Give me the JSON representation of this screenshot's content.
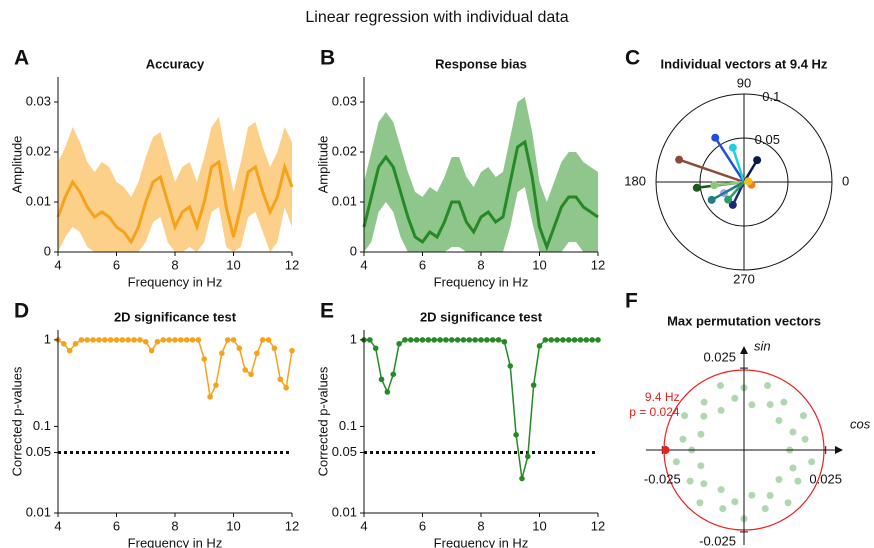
{
  "title": "Linear regression with individual data",
  "chart_data": [
    {
      "type": "line",
      "panel": "A",
      "title": "Accuracy",
      "xlabel": "Frequency in Hz",
      "ylabel": "Amplitude",
      "x": [
        4,
        4.25,
        4.5,
        4.75,
        5,
        5.25,
        5.5,
        5.75,
        6,
        6.25,
        6.5,
        6.75,
        7,
        7.25,
        7.5,
        7.75,
        8,
        8.25,
        8.5,
        8.75,
        9,
        9.25,
        9.5,
        9.75,
        10,
        10.25,
        10.5,
        10.75,
        11,
        11.25,
        11.5,
        11.75,
        12
      ],
      "values": [
        0.007,
        0.011,
        0.014,
        0.012,
        0.009,
        0.007,
        0.008,
        0.007,
        0.005,
        0.004,
        0.002,
        0.005,
        0.01,
        0.014,
        0.015,
        0.01,
        0.005,
        0.008,
        0.009,
        0.005,
        0.01,
        0.017,
        0.018,
        0.009,
        0.003,
        0.009,
        0.016,
        0.017,
        0.012,
        0.008,
        0.011,
        0.017,
        0.013
      ],
      "upper": [
        0.018,
        0.021,
        0.025,
        0.022,
        0.018,
        0.016,
        0.018,
        0.017,
        0.014,
        0.013,
        0.011,
        0.014,
        0.019,
        0.023,
        0.024,
        0.019,
        0.014,
        0.017,
        0.018,
        0.014,
        0.019,
        0.025,
        0.027,
        0.019,
        0.012,
        0.018,
        0.025,
        0.026,
        0.021,
        0.017,
        0.02,
        0.025,
        0.022
      ],
      "lower": [
        0,
        0.003,
        0.005,
        0.004,
        0.001,
        0,
        0,
        0,
        0,
        0,
        0,
        0,
        0.002,
        0.006,
        0.007,
        0.002,
        0,
        0,
        0.001,
        0,
        0.002,
        0.008,
        0.009,
        0.001,
        0,
        0.001,
        0.007,
        0.008,
        0.004,
        0,
        0.002,
        0.009,
        0.005
      ],
      "color": "#f5a31a",
      "band_color": "#fcd089",
      "xlim": [
        4,
        12
      ],
      "ylim": [
        0,
        0.035
      ],
      "xticks": [
        4,
        6,
        8,
        10,
        12
      ],
      "yticks": [
        0,
        0.01,
        0.02,
        0.03
      ],
      "log_scale": false
    },
    {
      "type": "line",
      "panel": "B",
      "title": "Response bias",
      "xlabel": "Frequency in Hz",
      "ylabel": "Amplitude",
      "x": [
        4,
        4.25,
        4.5,
        4.75,
        5,
        5.25,
        5.5,
        5.75,
        6,
        6.25,
        6.5,
        6.75,
        7,
        7.25,
        7.5,
        7.75,
        8,
        8.25,
        8.5,
        8.75,
        9,
        9.25,
        9.5,
        9.75,
        10,
        10.25,
        10.5,
        10.75,
        11,
        11.25,
        11.5,
        11.75,
        12
      ],
      "values": [
        0.005,
        0.011,
        0.017,
        0.019,
        0.017,
        0.012,
        0.007,
        0.003,
        0.002,
        0.004,
        0.003,
        0.006,
        0.01,
        0.01,
        0.006,
        0.004,
        0.007,
        0.008,
        0.006,
        0.007,
        0.014,
        0.021,
        0.022,
        0.015,
        0.005,
        0.001,
        0.005,
        0.009,
        0.011,
        0.011,
        0.009,
        0.008,
        0.007
      ],
      "upper": [
        0.014,
        0.02,
        0.026,
        0.028,
        0.026,
        0.021,
        0.016,
        0.012,
        0.011,
        0.013,
        0.012,
        0.015,
        0.019,
        0.019,
        0.015,
        0.013,
        0.016,
        0.017,
        0.015,
        0.016,
        0.023,
        0.03,
        0.031,
        0.024,
        0.014,
        0.01,
        0.014,
        0.018,
        0.02,
        0.02,
        0.018,
        0.017,
        0.016
      ],
      "lower": [
        0,
        0.002,
        0.008,
        0.01,
        0.008,
        0.003,
        0,
        0,
        0,
        0,
        0,
        0,
        0.001,
        0.001,
        0,
        0,
        0,
        0,
        0,
        0,
        0.005,
        0.012,
        0.013,
        0.006,
        0,
        0,
        0,
        0,
        0.002,
        0.002,
        0,
        0,
        0
      ],
      "color": "#258a25",
      "band_color": "#8fc68c",
      "xlim": [
        4,
        12
      ],
      "ylim": [
        0,
        0.035
      ],
      "xticks": [
        4,
        6,
        8,
        10,
        12
      ],
      "yticks": [
        0,
        0.01,
        0.02,
        0.03
      ],
      "log_scale": false
    },
    {
      "type": "polar",
      "panel": "C",
      "title": "Individual vectors at 9.4 Hz",
      "angles": [
        161,
        123,
        108,
        59,
        187,
        186,
        209,
        209,
        244,
        228,
        340,
        10
      ],
      "values": [
        0.078,
        0.06,
        0.041,
        0.029,
        0.054,
        0.034,
        0.026,
        0.042,
        0.029,
        0.027,
        0.009,
        0.005
      ],
      "colors": [
        "#8b4a3a",
        "#1f4fd8",
        "#20d0e0",
        "#0a1a4a",
        "#1a5a1a",
        "#8cc878",
        "#a0a0ff",
        "#208080",
        "#1a2a7a",
        "#2aa060",
        "#f08020",
        "#f0c020"
      ],
      "rlim": [
        0,
        0.1
      ],
      "rticks": [
        0.05,
        0.1
      ],
      "thetaticks": [
        0,
        90,
        180,
        270
      ]
    },
    {
      "type": "line",
      "panel": "D",
      "title": "2D significance test",
      "xlabel": "Frequency in Hz",
      "ylabel": "Corrected p-values",
      "x": [
        4,
        4.2,
        4.4,
        4.6,
        4.8,
        5,
        5.2,
        5.4,
        5.6,
        5.8,
        6,
        6.2,
        6.4,
        6.6,
        6.8,
        7,
        7.2,
        7.4,
        7.6,
        7.8,
        8,
        8.2,
        8.4,
        8.6,
        8.8,
        9,
        9.2,
        9.4,
        9.6,
        9.8,
        10,
        10.2,
        10.4,
        10.6,
        10.8,
        11,
        11.2,
        11.4,
        11.6,
        11.8,
        12
      ],
      "values": [
        1,
        0.9,
        0.75,
        0.9,
        1,
        1,
        1,
        1,
        1,
        1,
        1,
        1,
        1,
        1,
        1,
        0.95,
        0.75,
        0.95,
        1,
        1,
        1,
        1,
        1,
        1,
        1,
        0.6,
        0.22,
        0.3,
        0.7,
        1,
        1,
        0.8,
        0.45,
        0.4,
        0.7,
        1,
        1,
        0.8,
        0.35,
        0.28,
        0.75
      ],
      "color": "#f5a31a",
      "markers": true,
      "threshold": 0.05,
      "xlim": [
        4,
        12
      ],
      "ylim": [
        0.01,
        1.3
      ],
      "xticks": [
        4,
        6,
        8,
        10,
        12
      ],
      "yticks": [
        0.01,
        0.05,
        0.1,
        1
      ],
      "log_scale": true
    },
    {
      "type": "line",
      "panel": "E",
      "title": "2D significance test",
      "xlabel": "Frequency in Hz",
      "ylabel": "Corrected p-values",
      "x": [
        4,
        4.2,
        4.4,
        4.6,
        4.8,
        5,
        5.2,
        5.4,
        5.6,
        5.8,
        6,
        6.2,
        6.4,
        6.6,
        6.8,
        7,
        7.2,
        7.4,
        7.6,
        7.8,
        8,
        8.2,
        8.4,
        8.6,
        8.8,
        9,
        9.2,
        9.4,
        9.6,
        9.8,
        10,
        10.2,
        10.4,
        10.6,
        10.8,
        11,
        11.2,
        11.4,
        11.6,
        11.8,
        12
      ],
      "values": [
        1,
        1,
        0.8,
        0.35,
        0.25,
        0.4,
        0.9,
        1,
        1,
        1,
        1,
        1,
        1,
        1,
        1,
        1,
        1,
        1,
        1,
        1,
        1,
        1,
        1,
        1,
        0.95,
        0.5,
        0.08,
        0.025,
        0.045,
        0.3,
        0.85,
        1,
        1,
        1,
        1,
        1,
        1,
        1,
        1,
        1,
        1
      ],
      "color": "#258a25",
      "markers": true,
      "threshold": 0.05,
      "xlim": [
        4,
        12
      ],
      "ylim": [
        0.01,
        1.3
      ],
      "xticks": [
        4,
        6,
        8,
        10,
        12
      ],
      "yticks": [
        0.01,
        0.05,
        0.1,
        1
      ],
      "log_scale": true
    },
    {
      "type": "scatter",
      "panel": "F",
      "title": "Max permutation vectors",
      "xlabel": "cos",
      "ylabel": "sin",
      "x": [
        0.014,
        0.0187,
        0.015,
        0.0182,
        0.0107,
        0.0122,
        0.008,
        0.0072,
        0.0024,
        0,
        -0.0028,
        -0.0072,
        -0.007,
        -0.0122,
        -0.0123,
        -0.0182,
        -0.0132,
        -0.0187,
        -0.016,
        -0.0207,
        -0.0132,
        -0.0165,
        -0.0123,
        -0.0135,
        -0.007,
        -0.0065,
        -0.0028,
        0,
        0.0024,
        0.0065,
        0.008,
        0.0135,
        0.0107,
        0.0165,
        0.015,
        0.0207
      ],
      "y": [
        0,
        0.0033,
        0.0055,
        0.0105,
        0.009,
        0.0146,
        0.0139,
        0.0197,
        0.0138,
        0.019,
        0.0158,
        0.0197,
        0.0121,
        0.0146,
        0.0103,
        0.0105,
        0.0048,
        0.0033,
        0,
        -0.0036,
        -0.0048,
        -0.0095,
        -0.0103,
        -0.0161,
        -0.0121,
        -0.0179,
        -0.0158,
        -0.021,
        -0.0138,
        -0.0179,
        -0.0139,
        -0.0161,
        -0.009,
        -0.0095,
        -0.0055,
        -0.0036
      ],
      "color": "#3a9a3a",
      "circle_radius": 0.0245,
      "circle_color": "#e8201e",
      "highlight": {
        "x": -0.024,
        "y": 0,
        "label": "9.4 Hz",
        "p_label": "p = 0.024"
      },
      "xlim": [
        -0.03,
        0.03
      ],
      "ylim": [
        -0.029,
        0.029
      ],
      "xticks": [
        -0.025,
        0.025
      ],
      "yticks": [
        -0.025,
        0.025
      ]
    }
  ]
}
